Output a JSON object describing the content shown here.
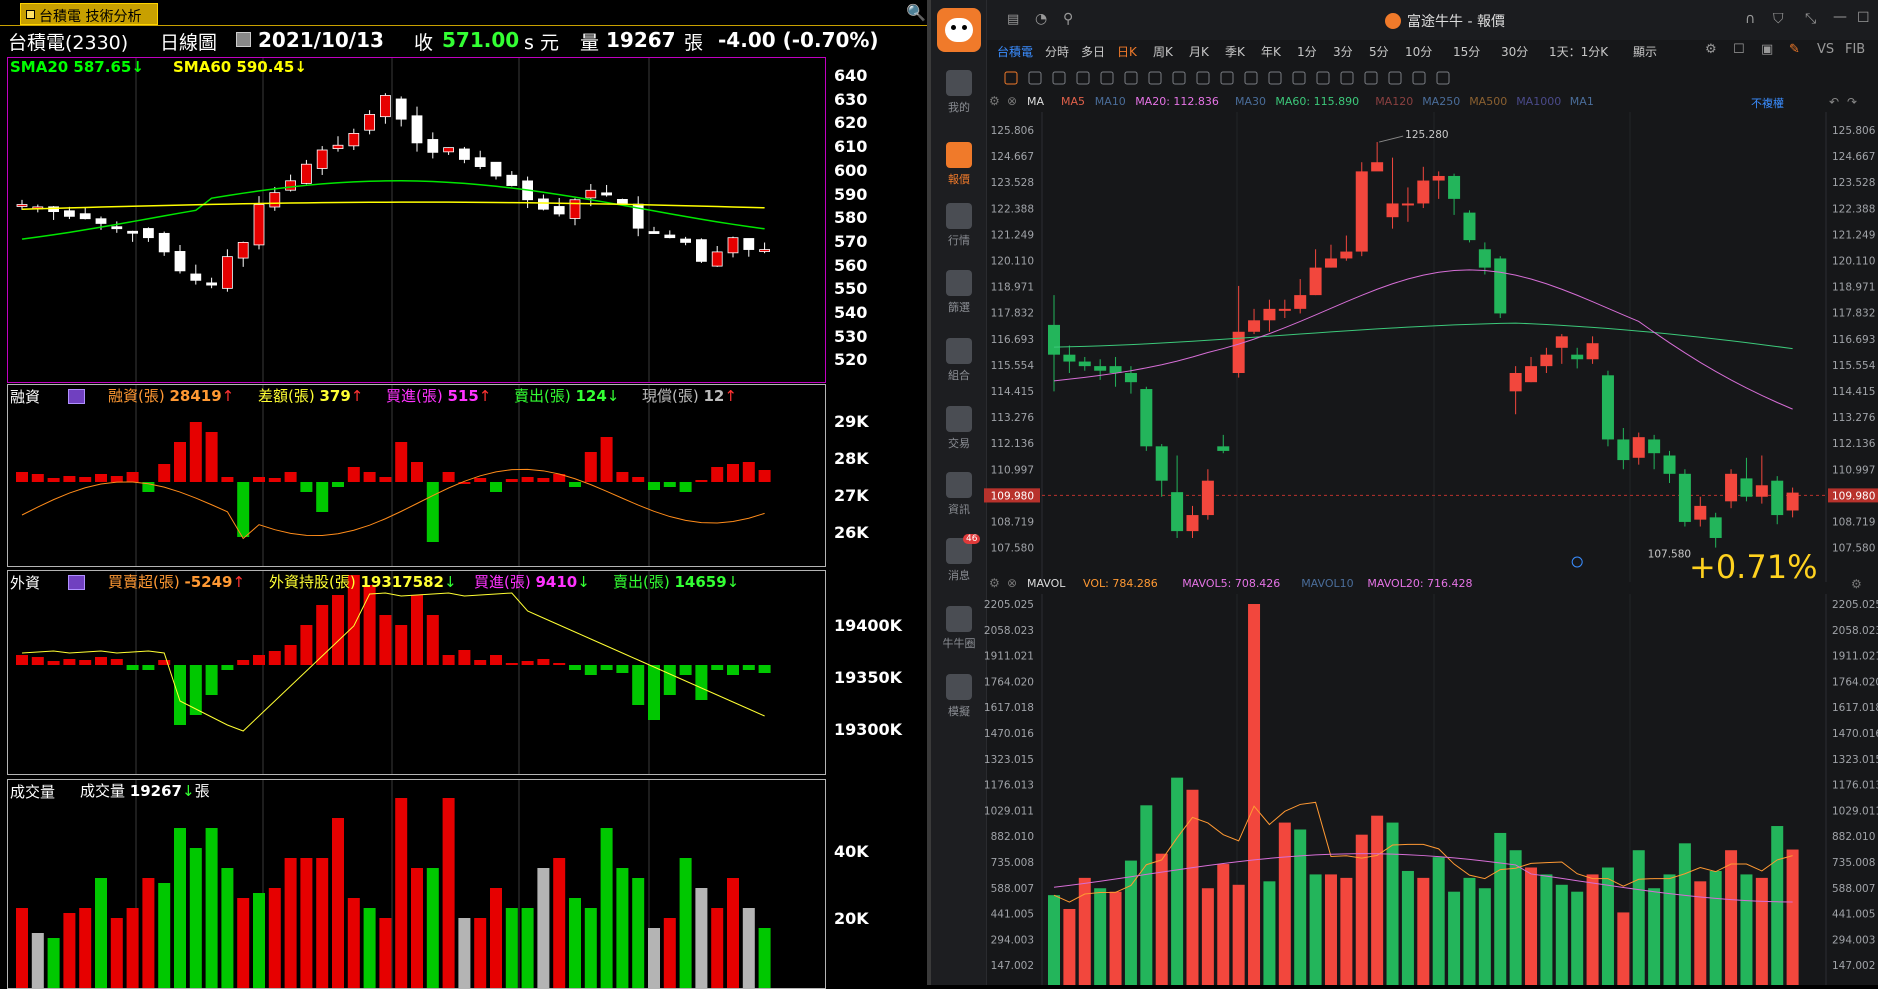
{
  "left_app": {
    "window_tab": "台積電 技術分析",
    "header": {
      "stock": "台積電(2330)",
      "period": "日線圖",
      "date": "2021/10/13",
      "close_label": "收",
      "close": "571.00",
      "unit": "s 元",
      "vol_label": "量",
      "volume": "19267",
      "vol_unit": "張",
      "change": "-4.00 (-0.70%)"
    },
    "price_panel": {
      "sma20": "SMA20 587.65",
      "sma60": "SMA60 590.45",
      "y_ticks": [
        "640",
        "630",
        "620",
        "610",
        "600",
        "590",
        "580",
        "570",
        "560",
        "550",
        "540",
        "530",
        "520"
      ]
    },
    "margin_panel": {
      "title": "融資",
      "items": [
        {
          "label": "融資(張)",
          "value": "28419",
          "arrow": "↑",
          "color": "#ff9933"
        },
        {
          "label": "差額(張)",
          "value": "379",
          "arrow": "↑",
          "color": "#ffff33"
        },
        {
          "label": "買進(張)",
          "value": "515",
          "arrow": "↑",
          "color": "#ff33ff"
        },
        {
          "label": "賣出(張)",
          "value": "124",
          "arrow": "↓",
          "color": "#33ff33"
        },
        {
          "label": "現償(張)",
          "value": "12",
          "arrow": "↑",
          "color": "#bbbbbb"
        }
      ],
      "y_ticks": [
        "29K",
        "28K",
        "27K",
        "26K"
      ]
    },
    "foreign_panel": {
      "title": "外資",
      "items": [
        {
          "label": "買賣超(張)",
          "value": "-5249",
          "arrow": "↑",
          "color": "#ff9933"
        },
        {
          "label": "外資持股(張)",
          "value": "19317582",
          "arrow": "↓",
          "color": "#ffff33"
        },
        {
          "label": "買進(張)",
          "value": "9410",
          "arrow": "↓",
          "color": "#ff33ff"
        },
        {
          "label": "賣出(張)",
          "value": "14659",
          "arrow": "↓",
          "color": "#33ff33"
        }
      ],
      "y_ticks": [
        "19400K",
        "19350K",
        "19300K"
      ]
    },
    "volume_panel": {
      "title": "成交量",
      "label": "成交量",
      "value": "19267",
      "arrow": "↓",
      "unit": "張",
      "y_ticks": [
        "40K",
        "20K"
      ]
    }
  },
  "right_app": {
    "window_title": "富途牛牛 - 報價",
    "period_tabs": [
      "台積電",
      "分時",
      "多日",
      "日K",
      "周K",
      "月K",
      "季K",
      "年K",
      "1分",
      "3分",
      "5分",
      "10分",
      "15分",
      "30分",
      "1天：1分K",
      "顯示"
    ],
    "active_tab": "日K",
    "sidebar": [
      {
        "label": "我的",
        "icon": "user-icon"
      },
      {
        "label": "報價",
        "icon": "quote-icon"
      },
      {
        "label": "行情",
        "icon": "market-icon"
      },
      {
        "label": "篩選",
        "icon": "filter-icon"
      },
      {
        "label": "組合",
        "icon": "portfolio-icon"
      },
      {
        "label": "交易",
        "icon": "trade-icon"
      },
      {
        "label": "資訊",
        "icon": "news-icon"
      },
      {
        "label": "消息",
        "icon": "message-icon",
        "badge": "46"
      },
      {
        "label": "牛牛圈",
        "icon": "community-icon"
      },
      {
        "label": "模擬",
        "icon": "simulate-icon"
      }
    ],
    "ma_bar": {
      "name": "MA",
      "items": [
        {
          "label": "MA5",
          "color": "#e0604a"
        },
        {
          "label": "MA10",
          "color": "#4a6d9a"
        },
        {
          "label": "MA20: 112.836",
          "color": "#e573e5"
        },
        {
          "label": "MA30",
          "color": "#4a6d9a"
        },
        {
          "label": "MA60: 115.890",
          "color": "#3cc87a"
        },
        {
          "label": "MA120",
          "color": "#8a4040"
        },
        {
          "label": "MA250",
          "color": "#4a6d9a"
        },
        {
          "label": "MA500",
          "color": "#8a6030"
        },
        {
          "label": "MA1000",
          "color": "#4a4a8a"
        },
        {
          "label": "MA1",
          "color": "#4a6d9a"
        }
      ],
      "right_label": "不複權"
    },
    "price_axis": [
      "125.806",
      "124.667",
      "123.528",
      "122.388",
      "121.249",
      "120.110",
      "118.971",
      "117.832",
      "116.693",
      "115.554",
      "114.415",
      "113.276",
      "112.136",
      "110.997",
      "109.980",
      "108.719",
      "107.580"
    ],
    "current_price": "109.980",
    "high_label": "125.280",
    "low_label": "107.580",
    "pct_change": "+0.71%",
    "vol_bar": {
      "name": "MAVOL",
      "items": [
        {
          "label": "VOL: 784.286",
          "color": "#ff9933"
        },
        {
          "label": "MAVOL5: 708.426",
          "color": "#e573e5"
        },
        {
          "label": "MAVOL10",
          "color": "#4a6d9a"
        },
        {
          "label": "MAVOL20: 716.428",
          "color": "#e573e5"
        }
      ]
    },
    "vol_axis": [
      "2205.025",
      "2058.023",
      "1911.021",
      "1764.020",
      "1617.018",
      "1470.016",
      "1323.015",
      "1176.013",
      "1029.011",
      "882.010",
      "735.008",
      "588.007",
      "441.005",
      "294.003",
      "147.002"
    ]
  },
  "colors": {
    "up_left": "#e60000",
    "down_left": "#00c800",
    "up_right": "#f2473d",
    "down_right": "#23b55b",
    "sma20": "#00e600",
    "sma60": "#ffff00"
  }
}
